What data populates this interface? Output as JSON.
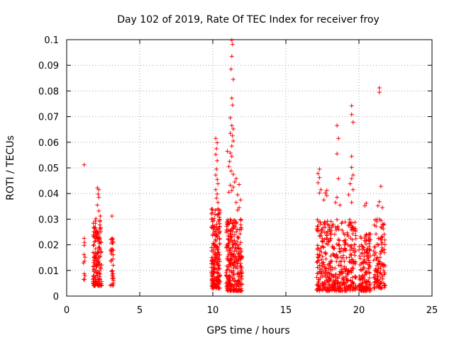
{
  "chart_data": {
    "type": "scatter",
    "title": "Day 102 of 2019, Rate Of TEC Index for receiver froy",
    "xlabel": "GPS time / hours",
    "ylabel": "ROTI / TECUs",
    "xlim": [
      0,
      25
    ],
    "ylim": [
      0,
      0.1
    ],
    "xticks": [
      0,
      5,
      10,
      15,
      20,
      25
    ],
    "yticks": [
      0,
      0.01,
      0.02,
      0.03,
      0.04,
      0.05,
      0.06,
      0.07,
      0.08,
      0.09,
      0.1
    ],
    "xtick_labels": [
      "0",
      "5",
      "10",
      "15",
      "20",
      "25"
    ],
    "ytick_labels": [
      "0",
      "0.01",
      "0.02",
      "0.03",
      "0.04",
      "0.05",
      "0.06",
      "0.07",
      "0.08",
      "0.09",
      "0.1"
    ],
    "grid": true,
    "marker": "+",
    "color": "#ff0000",
    "series": [
      {
        "name": "ROTI",
        "clusters": [
          {
            "x_range": [
              1.1,
              1.3
            ],
            "y_range": [
              0.006,
              0.022
            ],
            "count": 10
          },
          {
            "x_range": [
              1.8,
              2.4
            ],
            "y_range": [
              0.004,
              0.03
            ],
            "count": 160
          },
          {
            "x_range": [
              3.0,
              3.2
            ],
            "y_range": [
              0.004,
              0.023
            ],
            "count": 35
          },
          {
            "x_range": [
              9.9,
              10.5
            ],
            "y_range": [
              0.003,
              0.035
            ],
            "count": 200
          },
          {
            "x_range": [
              10.9,
              12.0
            ],
            "y_range": [
              0.002,
              0.03
            ],
            "count": 300
          },
          {
            "x_range": [
              17.1,
              19.8
            ],
            "y_range": [
              0.002,
              0.03
            ],
            "count": 450
          },
          {
            "x_range": [
              20.0,
              20.8
            ],
            "y_range": [
              0.002,
              0.025
            ],
            "count": 150
          },
          {
            "x_range": [
              21.0,
              21.8
            ],
            "y_range": [
              0.003,
              0.03
            ],
            "count": 120
          }
        ],
        "points": [
          [
            1.2,
            0.0512
          ],
          [
            1.2,
            0.0225
          ],
          [
            1.2,
            0.0198
          ],
          [
            2.1,
            0.0422
          ],
          [
            2.2,
            0.0415
          ],
          [
            2.15,
            0.0398
          ],
          [
            2.2,
            0.0385
          ],
          [
            2.1,
            0.0355
          ],
          [
            2.2,
            0.0332
          ],
          [
            2.0,
            0.0302
          ],
          [
            2.3,
            0.0312
          ],
          [
            3.1,
            0.0312
          ],
          [
            3.1,
            0.0225
          ],
          [
            10.2,
            0.0615
          ],
          [
            10.3,
            0.0598
          ],
          [
            10.25,
            0.0575
          ],
          [
            10.2,
            0.0552
          ],
          [
            10.3,
            0.0528
          ],
          [
            10.25,
            0.0495
          ],
          [
            10.2,
            0.0472
          ],
          [
            10.3,
            0.0455
          ],
          [
            10.35,
            0.0438
          ],
          [
            10.2,
            0.0415
          ],
          [
            10.3,
            0.0398
          ],
          [
            10.25,
            0.0382
          ],
          [
            10.35,
            0.0365
          ],
          [
            11.3,
            0.0998
          ],
          [
            11.35,
            0.0982
          ],
          [
            11.3,
            0.0935
          ],
          [
            11.25,
            0.0885
          ],
          [
            11.4,
            0.0845
          ],
          [
            11.3,
            0.0772
          ],
          [
            11.35,
            0.0745
          ],
          [
            11.2,
            0.0695
          ],
          [
            11.3,
            0.0665
          ],
          [
            11.4,
            0.0652
          ],
          [
            11.2,
            0.0635
          ],
          [
            11.35,
            0.0625
          ],
          [
            11.4,
            0.0605
          ],
          [
            11.3,
            0.0585
          ],
          [
            11.0,
            0.0565
          ],
          [
            11.2,
            0.0558
          ],
          [
            11.3,
            0.0545
          ],
          [
            11.15,
            0.0525
          ],
          [
            11.1,
            0.0505
          ],
          [
            11.25,
            0.0488
          ],
          [
            11.4,
            0.0475
          ],
          [
            11.6,
            0.0458
          ],
          [
            11.5,
            0.0445
          ],
          [
            11.2,
            0.0432
          ],
          [
            11.8,
            0.0435
          ],
          [
            11.4,
            0.0425
          ],
          [
            11.3,
            0.0412
          ],
          [
            11.1,
            0.0405
          ],
          [
            11.7,
            0.0395
          ],
          [
            11.9,
            0.0375
          ],
          [
            11.6,
            0.0365
          ],
          [
            11.8,
            0.0345
          ],
          [
            11.7,
            0.0335
          ],
          [
            17.3,
            0.0495
          ],
          [
            17.2,
            0.0478
          ],
          [
            17.3,
            0.0462
          ],
          [
            17.2,
            0.0442
          ],
          [
            17.4,
            0.0415
          ],
          [
            17.3,
            0.0402
          ],
          [
            17.8,
            0.0412
          ],
          [
            17.7,
            0.0402
          ],
          [
            17.8,
            0.0392
          ],
          [
            17.6,
            0.0375
          ],
          [
            18.5,
            0.0665
          ],
          [
            18.6,
            0.0615
          ],
          [
            18.5,
            0.0555
          ],
          [
            18.6,
            0.0458
          ],
          [
            18.5,
            0.0385
          ],
          [
            18.7,
            0.0355
          ],
          [
            18.4,
            0.0365
          ],
          [
            19.5,
            0.0742
          ],
          [
            19.5,
            0.0708
          ],
          [
            19.6,
            0.0678
          ],
          [
            19.5,
            0.0545
          ],
          [
            19.5,
            0.0502
          ],
          [
            19.6,
            0.0472
          ],
          [
            19.5,
            0.0458
          ],
          [
            19.4,
            0.0438
          ],
          [
            19.6,
            0.0415
          ],
          [
            19.3,
            0.0395
          ],
          [
            19.5,
            0.0365
          ],
          [
            20.5,
            0.0362
          ],
          [
            20.4,
            0.0352
          ],
          [
            21.4,
            0.0812
          ],
          [
            21.4,
            0.0795
          ],
          [
            21.5,
            0.0428
          ],
          [
            21.4,
            0.0368
          ],
          [
            21.3,
            0.0352
          ],
          [
            21.6,
            0.0345
          ]
        ]
      }
    ]
  }
}
